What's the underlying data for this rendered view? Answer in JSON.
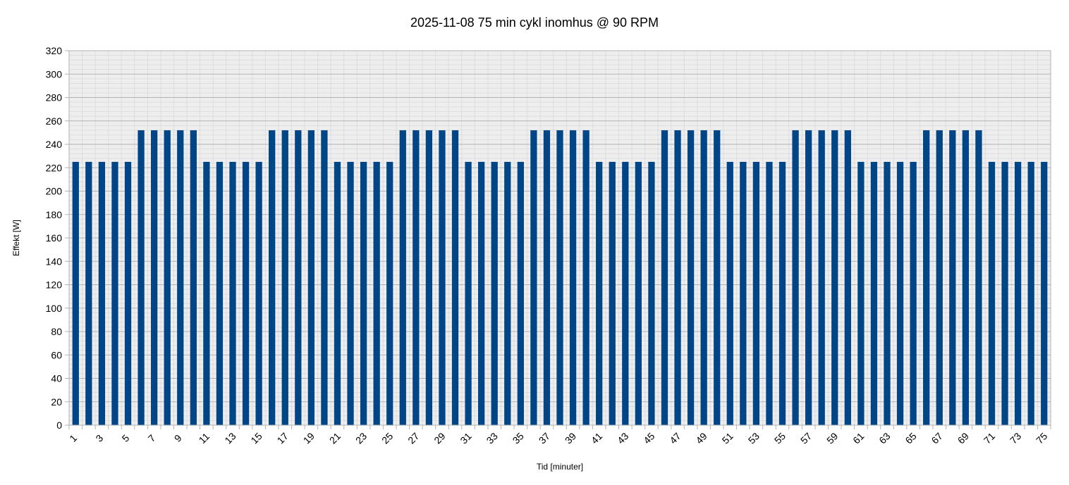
{
  "chart_data": {
    "type": "bar",
    "title": "2025-11-08 75 min cykl inomhus @ 90 RPM",
    "xlabel": "Tid [minuter]",
    "ylabel": "Effekt [W]",
    "ylim": [
      0,
      320
    ],
    "y_ticks": [
      0,
      20,
      40,
      60,
      80,
      100,
      120,
      140,
      160,
      180,
      200,
      220,
      240,
      260,
      280,
      300,
      320
    ],
    "x_tick_labels": [
      "1",
      "3",
      "5",
      "7",
      "9",
      "11",
      "13",
      "15",
      "17",
      "19",
      "21",
      "23",
      "25",
      "27",
      "29",
      "31",
      "33",
      "35",
      "37",
      "39",
      "41",
      "43",
      "45",
      "47",
      "49",
      "51",
      "53",
      "55",
      "57",
      "59",
      "61",
      "63",
      "65",
      "67",
      "69",
      "71",
      "73",
      "75"
    ],
    "grid": true,
    "legend": "none",
    "categories": [
      "1",
      "2",
      "3",
      "4",
      "5",
      "6",
      "7",
      "8",
      "9",
      "10",
      "11",
      "12",
      "13",
      "14",
      "15",
      "16",
      "17",
      "18",
      "19",
      "20",
      "21",
      "22",
      "23",
      "24",
      "25",
      "26",
      "27",
      "28",
      "29",
      "30",
      "31",
      "32",
      "33",
      "34",
      "35",
      "36",
      "37",
      "38",
      "39",
      "40",
      "41",
      "42",
      "43",
      "44",
      "45",
      "46",
      "47",
      "48",
      "49",
      "50",
      "51",
      "52",
      "53",
      "54",
      "55",
      "56",
      "57",
      "58",
      "59",
      "60",
      "61",
      "62",
      "63",
      "64",
      "65",
      "66",
      "67",
      "68",
      "69",
      "70",
      "71",
      "72",
      "73",
      "74",
      "75"
    ],
    "values": [
      225,
      225,
      225,
      225,
      225,
      252,
      252,
      252,
      252,
      252,
      225,
      225,
      225,
      225,
      225,
      252,
      252,
      252,
      252,
      252,
      225,
      225,
      225,
      225,
      225,
      252,
      252,
      252,
      252,
      252,
      225,
      225,
      225,
      225,
      225,
      252,
      252,
      252,
      252,
      252,
      225,
      225,
      225,
      225,
      225,
      252,
      252,
      252,
      252,
      252,
      225,
      225,
      225,
      225,
      225,
      252,
      252,
      252,
      252,
      252,
      225,
      225,
      225,
      225,
      225,
      252,
      252,
      252,
      252,
      252,
      225,
      225,
      225,
      225,
      225
    ],
    "colors": {
      "bar": "#004586",
      "plot_background": "#eeeeee",
      "grid_major": "#b3b3b3",
      "grid_minor": "#dddddd",
      "axis": "#b3b3b3"
    }
  }
}
